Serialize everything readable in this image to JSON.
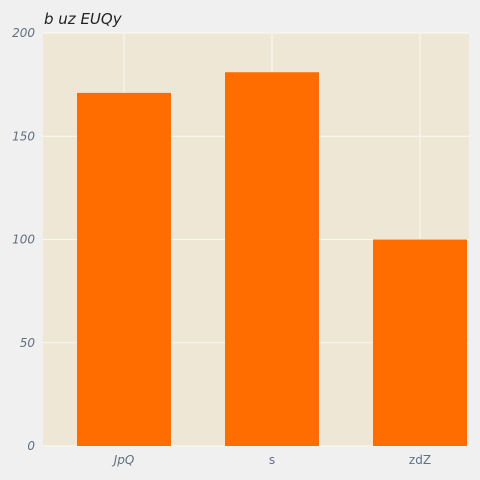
{
  "chart_data": {
    "type": "bar",
    "title": "b  uz  EUQy",
    "categories": [
      "JpQ",
      "s",
      "zdZ"
    ],
    "values": [
      171,
      181,
      100
    ],
    "ylim": [
      0,
      200
    ],
    "yticks": [
      0,
      50,
      100,
      150,
      200
    ],
    "xlabel": "",
    "ylabel": "",
    "grid": true,
    "colors": {
      "bar": "#ff6d00",
      "plot_background": "#efe7d6",
      "grid": "#fbf8f1",
      "page_background": "#f0f0f0"
    }
  }
}
